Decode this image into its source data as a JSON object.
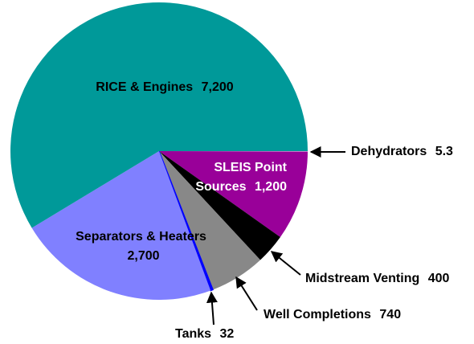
{
  "chart_data": {
    "type": "pie",
    "categories": [
      "Dehydrators",
      "SLEIS Point Sources",
      "Midstream Venting",
      "Well Completions",
      "Tanks",
      "Separators & Heaters",
      "RICE & Engines"
    ],
    "values": [
      5.3,
      1200,
      400,
      740,
      32,
      2700,
      7200
    ],
    "value_labels": [
      "5.3",
      "1,200",
      "400",
      "740",
      "32",
      "2,700",
      "7,200"
    ],
    "colors": [
      "#ffffff",
      "#990099",
      "#000000",
      "#888888",
      "#0000ff",
      "#8080ff",
      "#009999"
    ]
  }
}
